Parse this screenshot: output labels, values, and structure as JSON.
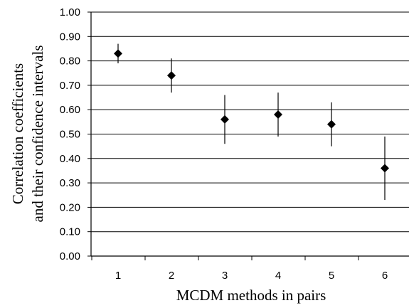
{
  "chart_data": {
    "type": "scatter",
    "title": "",
    "xlabel": "MCDM methods in pairs",
    "ylabel_lines": [
      "Correlation coefficients",
      "and their confidence intervals"
    ],
    "categories": [
      "1",
      "2",
      "3",
      "4",
      "5",
      "6"
    ],
    "y_ticks": [
      "0.00",
      "0.10",
      "0.20",
      "0.30",
      "0.40",
      "0.50",
      "0.60",
      "0.70",
      "0.80",
      "0.90",
      "1.00"
    ],
    "ylim": [
      0,
      1
    ],
    "grid": true,
    "legend": "none",
    "marker": "diamond",
    "series": [
      {
        "values": [
          0.83,
          0.74,
          0.56,
          0.58,
          0.54,
          0.36
        ],
        "lower": [
          0.79,
          0.67,
          0.46,
          0.49,
          0.45,
          0.23
        ],
        "upper": [
          0.87,
          0.81,
          0.66,
          0.67,
          0.63,
          0.49
        ]
      }
    ]
  }
}
